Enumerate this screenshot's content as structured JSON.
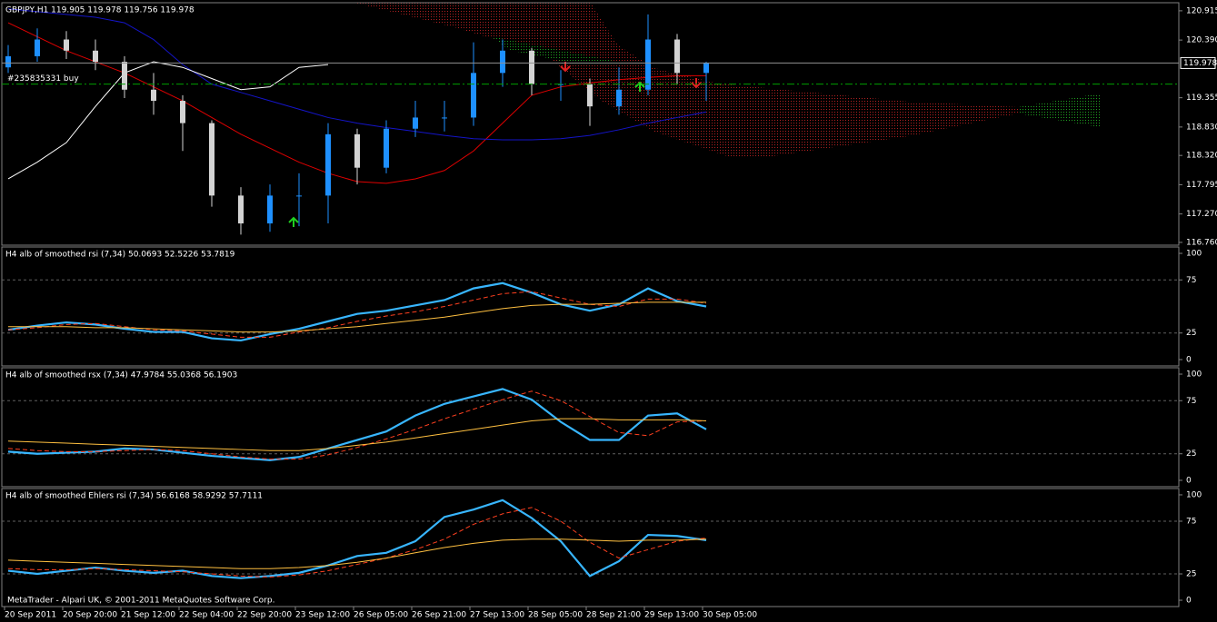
{
  "chart_data": [
    {
      "type": "candlestick",
      "title": "GBPJPY,H1  119.905 119.978 119.756 119.978",
      "categories": [
        "20 Sep 2011",
        null,
        "20 Sep 20:00",
        null,
        "21 Sep 12:00",
        null,
        "22 Sep 04:00",
        null,
        "22 Sep 20:00",
        null,
        "23 Sep 12:00",
        null,
        "26 Sep 05:00",
        null,
        "26 Sep 21:00",
        null,
        "27 Sep 13:00",
        null,
        "28 Sep 05:00",
        null,
        "28 Sep 21:00",
        null,
        "29 Sep 13:00",
        null,
        "30 Sep 05:00"
      ],
      "open": [
        119.9,
        120.1,
        120.4,
        120.2,
        120.0,
        119.5,
        119.3,
        118.9,
        117.6,
        117.1,
        117.6,
        117.6,
        118.7,
        118.1,
        118.8,
        119.0,
        119.0,
        119.8,
        120.2,
        119.6,
        119.6,
        119.2,
        119.5,
        120.4,
        119.8
      ],
      "high": [
        120.3,
        120.6,
        120.55,
        120.4,
        120.1,
        119.8,
        119.4,
        118.95,
        117.75,
        117.8,
        118.0,
        118.9,
        118.8,
        118.95,
        119.3,
        119.3,
        120.35,
        120.4,
        120.25,
        119.85,
        119.7,
        119.9,
        120.85,
        120.5,
        120.0
      ],
      "low": [
        119.8,
        120.0,
        120.05,
        119.85,
        119.35,
        119.05,
        118.4,
        117.4,
        116.9,
        116.95,
        117.05,
        117.1,
        117.8,
        118.0,
        118.65,
        118.75,
        118.85,
        119.55,
        119.4,
        119.3,
        118.85,
        119.05,
        119.4,
        119.6,
        119.3
      ],
      "close": [
        120.1,
        120.4,
        120.2,
        120.0,
        119.5,
        119.3,
        118.9,
        117.6,
        117.1,
        117.6,
        117.6,
        118.7,
        118.1,
        118.8,
        119.0,
        119.0,
        119.8,
        120.2,
        119.6,
        119.6,
        119.2,
        119.5,
        120.4,
        119.8,
        119.978
      ],
      "up_color": "#1e90ff",
      "down_color": "#d3d3d3",
      "lines": [
        {
          "color": "#e00000",
          "values": [
            120.7,
            120.45,
            120.2,
            120.0,
            119.8,
            119.55,
            119.3,
            119.0,
            118.7,
            118.45,
            118.2,
            118.0,
            117.85,
            117.82,
            117.9,
            118.05,
            118.4,
            118.9,
            119.4,
            119.55,
            119.62,
            119.68,
            119.72,
            119.75,
            119.75
          ]
        },
        {
          "color": "#1414c8",
          "values": [
            120.95,
            120.9,
            120.85,
            120.8,
            120.7,
            120.4,
            119.95,
            119.6,
            119.45,
            119.3,
            119.15,
            119.0,
            118.9,
            118.82,
            118.75,
            118.68,
            118.62,
            118.6,
            118.6,
            118.62,
            118.68,
            118.78,
            118.9,
            119.0,
            119.1
          ]
        },
        {
          "color": "#ffffff",
          "values": [
            117.9,
            118.2,
            118.55,
            119.2,
            119.8,
            120.0,
            119.9,
            119.7,
            119.5,
            119.55,
            119.9,
            119.95,
            null,
            null,
            null,
            null,
            null,
            null,
            null,
            null,
            null,
            null,
            null,
            null,
            null
          ]
        }
      ],
      "price_line": {
        "value": 119.978,
        "label": "119.978",
        "color": "#909090"
      },
      "order_line": {
        "value": 119.6,
        "label": "#235835331 buy",
        "color": "#00a000"
      },
      "ylim": [
        116.71,
        121.06
      ],
      "yticks": [
        {
          "value": 120.915,
          "label": "120.915"
        },
        {
          "value": 120.39,
          "label": "120.390"
        },
        {
          "value": 119.355,
          "label": "119.355"
        },
        {
          "value": 118.83,
          "label": "118.830"
        },
        {
          "value": 118.32,
          "label": "118.320"
        },
        {
          "value": 117.795,
          "label": "117.795"
        },
        {
          "value": 117.27,
          "label": "117.270"
        },
        {
          "value": 116.76,
          "label": "116.760"
        }
      ],
      "grid": false
    },
    {
      "type": "line",
      "title": "H4  alb of smoothed rsi  (7,34) 50.0693 52.5226 53.7819",
      "series": [
        {
          "color": "#38b6ff",
          "style": "solid",
          "values": [
            28,
            32,
            35,
            33,
            29,
            26,
            26,
            20,
            18,
            24,
            29,
            36,
            43,
            46,
            51,
            56,
            67,
            72,
            63,
            52,
            46,
            52,
            67,
            55,
            50
          ]
        },
        {
          "color": "#ff4020",
          "style": "dashed",
          "values": [
            28,
            30,
            33,
            34,
            31,
            28,
            27,
            24,
            21,
            21,
            26,
            30,
            36,
            41,
            45,
            50,
            56,
            62,
            64,
            58,
            52,
            50,
            57,
            57,
            53
          ]
        },
        {
          "color": "#ffc040",
          "style": "thin",
          "values": [
            31,
            31,
            31,
            30,
            30,
            29,
            28,
            27,
            26,
            26,
            27,
            29,
            31,
            34,
            37,
            40,
            44,
            48,
            51,
            52,
            52,
            53,
            54,
            54,
            54
          ]
        }
      ],
      "ylim": [
        -6,
        106
      ],
      "yticks": [
        100,
        75,
        25,
        0
      ],
      "grid": true
    },
    {
      "type": "line",
      "title": "H4  alb of smoothed rsx  (7,34) 47.9784 55.0368 56.1903",
      "series": [
        {
          "color": "#38b6ff",
          "style": "solid",
          "values": [
            27,
            25,
            26,
            27,
            30,
            29,
            26,
            23,
            21,
            19,
            22,
            30,
            38,
            46,
            61,
            72,
            79,
            86,
            76,
            55,
            38,
            38,
            61,
            63,
            48
          ]
        },
        {
          "color": "#ff4020",
          "style": "dashed",
          "values": [
            30,
            28,
            27,
            27,
            28,
            29,
            28,
            25,
            22,
            20,
            20,
            24,
            31,
            39,
            48,
            58,
            67,
            76,
            84,
            75,
            60,
            45,
            42,
            55,
            56
          ]
        },
        {
          "color": "#ffc040",
          "style": "thin",
          "values": [
            37,
            36,
            35,
            34,
            33,
            32,
            31,
            30,
            29,
            28,
            28,
            30,
            33,
            36,
            40,
            44,
            48,
            52,
            56,
            58,
            58,
            57,
            57,
            57,
            56
          ]
        }
      ],
      "ylim": [
        -6,
        106
      ],
      "yticks": [
        100,
        75,
        25,
        0
      ],
      "grid": true
    },
    {
      "type": "line",
      "title": "H4  alb of smoothed Ehlers rsi  (7,34) 56.6168 58.9292 57.7111",
      "series": [
        {
          "color": "#38b6ff",
          "style": "solid",
          "values": [
            28,
            25,
            28,
            31,
            28,
            26,
            28,
            23,
            21,
            23,
            26,
            33,
            42,
            45,
            56,
            79,
            86,
            95,
            78,
            56,
            23,
            37,
            62,
            61,
            57
          ]
        },
        {
          "color": "#ff4020",
          "style": "dashed",
          "values": [
            30,
            29,
            29,
            30,
            29,
            28,
            27,
            25,
            23,
            22,
            24,
            28,
            34,
            40,
            48,
            58,
            72,
            82,
            88,
            75,
            55,
            40,
            48,
            56,
            59
          ]
        },
        {
          "color": "#ffc040",
          "style": "thin",
          "values": [
            38,
            37,
            36,
            35,
            34,
            33,
            32,
            31,
            30,
            30,
            31,
            33,
            36,
            40,
            45,
            50,
            54,
            57,
            58,
            58,
            57,
            56,
            57,
            57,
            58
          ]
        }
      ],
      "ylim": [
        -6,
        106
      ],
      "yticks": [
        100,
        75,
        25,
        0
      ],
      "grid": true
    }
  ],
  "footer": "MetaTrader - Alpari UK, © 2001-2011 MetaQuotes Software Corp."
}
